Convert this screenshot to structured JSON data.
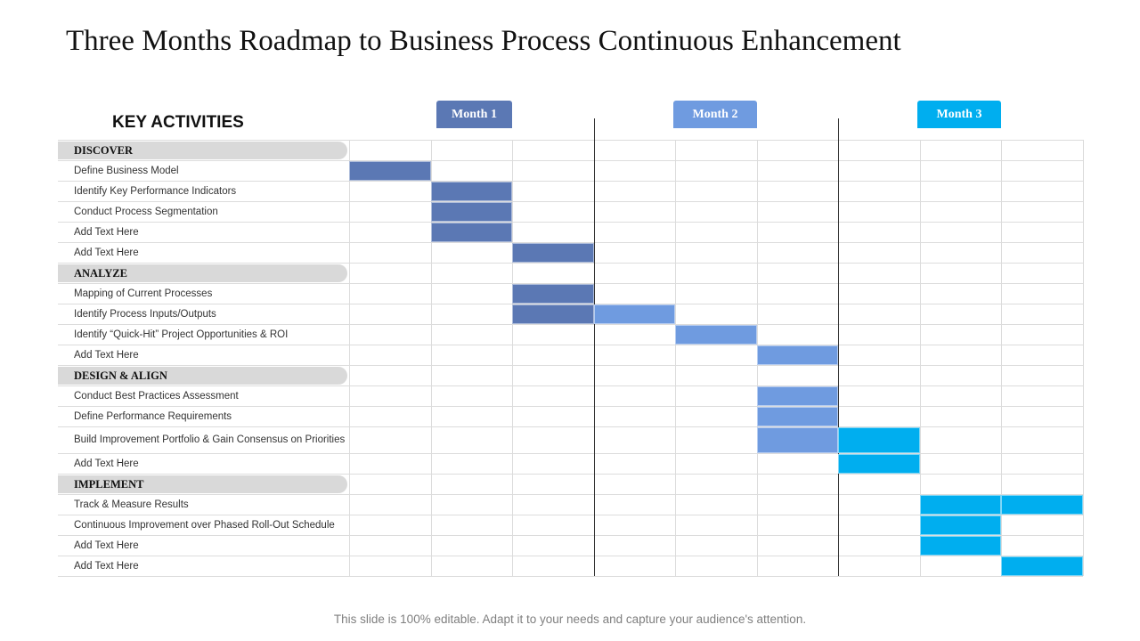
{
  "title": "Three Months Roadmap to Business Process Continuous Enhancement",
  "key_activities_label": "KEY ACTIVITIES",
  "months": [
    {
      "label": "Month 1",
      "color": "#5b78b4"
    },
    {
      "label": "Month 2",
      "color": "#6f9be0"
    },
    {
      "label": "Month 3",
      "color": "#00aeef"
    }
  ],
  "weeks_per_month": 3,
  "rows": [
    {
      "type": "group",
      "label": "DISCOVER"
    },
    {
      "type": "task",
      "label": "Define Business Model",
      "weeks": [
        1
      ],
      "month": 1
    },
    {
      "type": "task",
      "label": "Identify Key Performance Indicators",
      "weeks": [
        2
      ],
      "month": 1
    },
    {
      "type": "task",
      "label": "Conduct Process Segmentation",
      "weeks": [
        2
      ],
      "month": 1
    },
    {
      "type": "task",
      "label": "Add Text Here",
      "weeks": [
        2
      ],
      "month": 1
    },
    {
      "type": "task",
      "label": "Add Text Here",
      "weeks": [
        3
      ],
      "month": 1
    },
    {
      "type": "group",
      "label": "ANALYZE"
    },
    {
      "type": "task",
      "label": "Mapping of Current Processes",
      "weeks": [
        3
      ],
      "month": 1
    },
    {
      "type": "task",
      "label": "Identify Process Inputs/Outputs",
      "weeks": [
        3
      ],
      "month": 1,
      "extra_weeks": [
        4
      ],
      "extra_month": 2
    },
    {
      "type": "task",
      "label": "Identify “Quick-Hit” Project Opportunities & ROI",
      "weeks": [
        5
      ],
      "month": 2
    },
    {
      "type": "task",
      "label": "Add Text Here",
      "weeks": [
        6
      ],
      "month": 2
    },
    {
      "type": "group",
      "label": "DESIGN & ALIGN"
    },
    {
      "type": "task",
      "label": "Conduct Best Practices Assessment",
      "weeks": [
        6
      ],
      "month": 2
    },
    {
      "type": "task",
      "label": "Define Performance Requirements",
      "weeks": [
        6
      ],
      "month": 2
    },
    {
      "type": "task",
      "label": "Build Improvement Portfolio & Gain Consensus on Priorities",
      "weeks": [
        6
      ],
      "month": 2,
      "extra_weeks": [
        7
      ],
      "extra_month": 3,
      "tall": true
    },
    {
      "type": "task",
      "label": "Add Text Here",
      "weeks": [
        7
      ],
      "month": 3
    },
    {
      "type": "group",
      "label": "IMPLEMENT"
    },
    {
      "type": "task",
      "label": "Track & Measure Results",
      "weeks": [
        8,
        9
      ],
      "month": 3
    },
    {
      "type": "task",
      "label": "Continuous Improvement over Phased Roll-Out Schedule",
      "weeks": [
        8
      ],
      "month": 3
    },
    {
      "type": "task",
      "label": "Add Text Here",
      "weeks": [
        8
      ],
      "month": 3
    },
    {
      "type": "task",
      "label": "Add Text Here",
      "weeks": [
        9
      ],
      "month": 3
    }
  ],
  "footer": "This slide is 100% editable. Adapt it to your needs and capture your audience's attention."
}
